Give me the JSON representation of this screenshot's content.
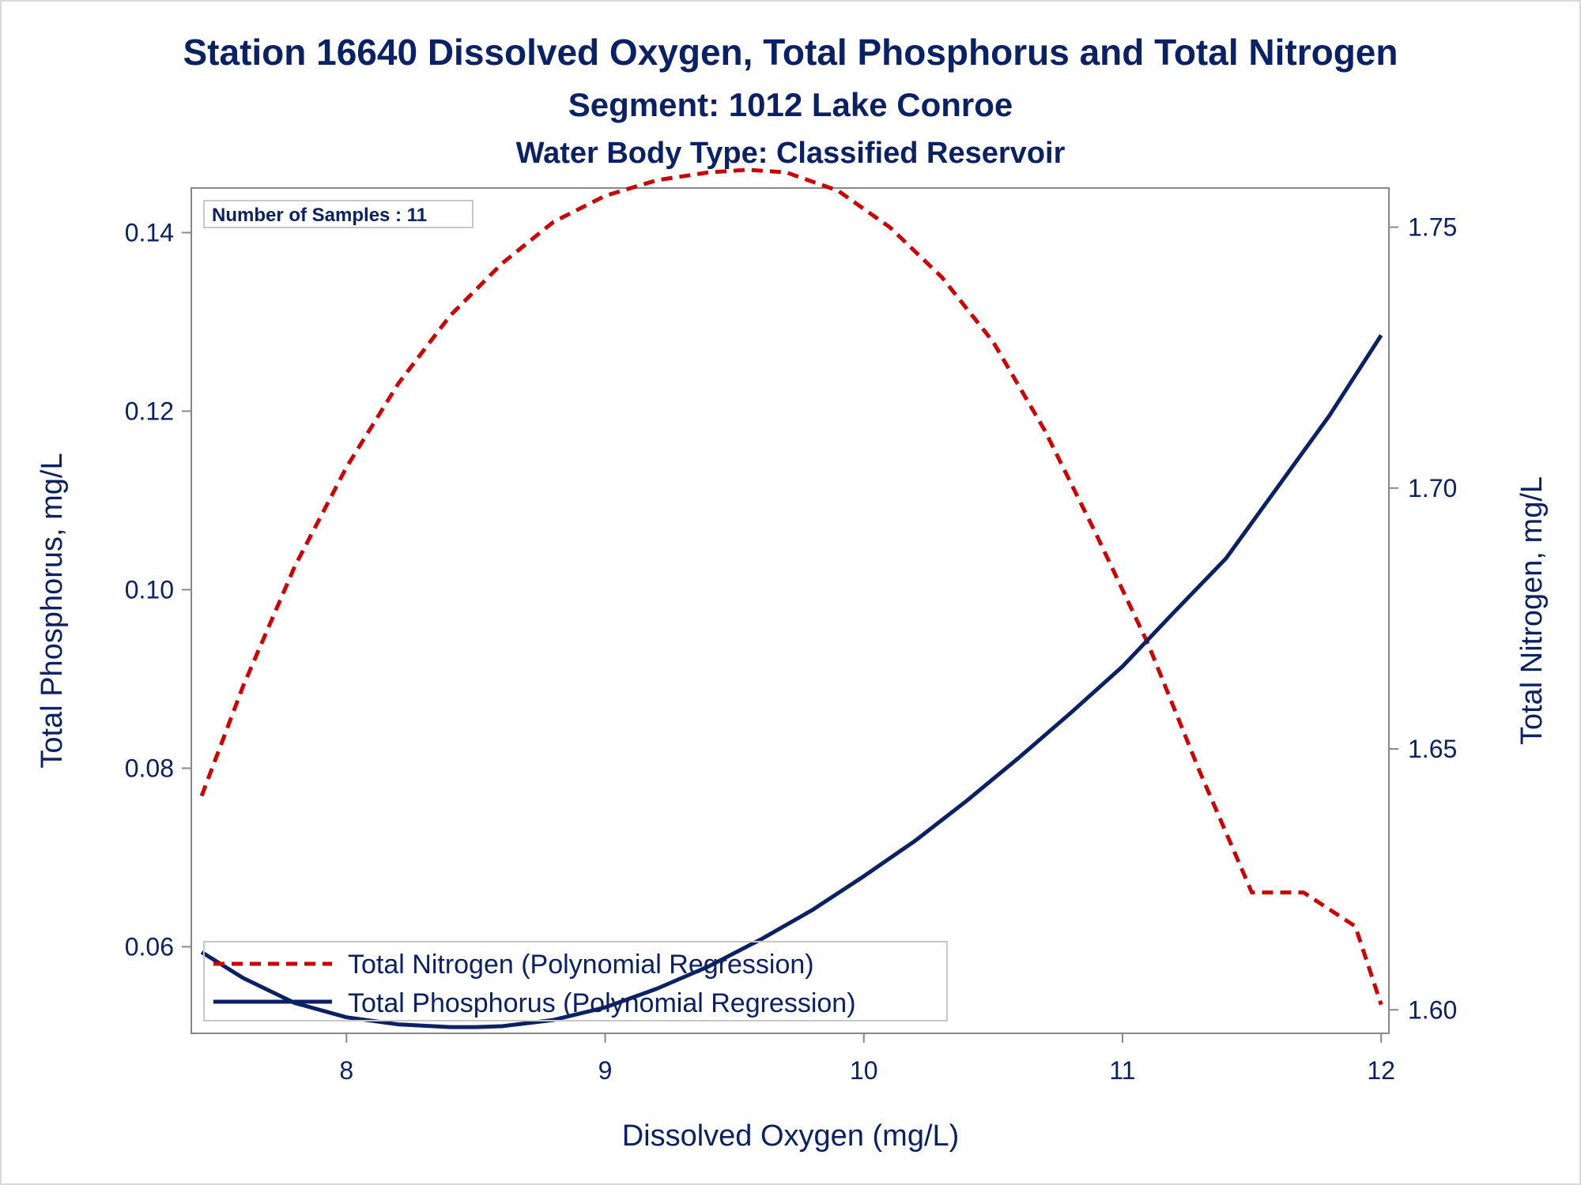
{
  "chart_data": {
    "type": "line",
    "title": "Station 16640  Dissolved Oxygen, Total Phosphorus and Total Nitrogen",
    "subtitle": "Segment: 1012  Lake Conroe",
    "subtitle2": "Water Body Type: Classified Reservoir",
    "annotation": "Number of Samples : 11",
    "xlabel": "Dissolved Oxygen (mg/L)",
    "ylabel_left": "Total Phosphorus, mg/L",
    "ylabel_right": "Total Nitrogen, mg/L",
    "xlim": [
      7.4,
      12.03
    ],
    "ylim_left": [
      0.0503,
      0.145
    ],
    "ylim_right": [
      1.5955,
      1.7575
    ],
    "x_ticks": [
      8,
      9,
      10,
      11,
      12
    ],
    "x_tick_labels": [
      "8",
      "9",
      "10",
      "11",
      "12"
    ],
    "y_left_ticks": [
      0.06,
      0.08,
      0.1,
      0.12,
      0.14
    ],
    "y_left_tick_labels": [
      "0.06",
      "0.08",
      "0.10",
      "0.12",
      "0.14"
    ],
    "y_right_ticks": [
      1.6,
      1.65,
      1.7,
      1.75
    ],
    "y_right_tick_labels": [
      "1.60",
      "1.65",
      "1.70",
      "1.75"
    ],
    "grid": false,
    "legend_position": "bottom-left",
    "series": [
      {
        "name": "Total Nitrogen (Polynomial Regression)",
        "axis": "right",
        "style": "dashed",
        "color": "#cc0000",
        "x": [
          7.44,
          7.6,
          7.8,
          8.0,
          8.2,
          8.4,
          8.6,
          8.8,
          9.0,
          9.2,
          9.4,
          9.55,
          9.7,
          9.9,
          10.1,
          10.3,
          10.5,
          10.7,
          10.9,
          11.1,
          11.3,
          11.5,
          11.7,
          11.9,
          12.0
        ],
        "values": [
          1.641,
          1.662,
          1.685,
          1.704,
          1.72,
          1.733,
          1.743,
          1.751,
          1.756,
          1.759,
          1.7605,
          1.761,
          1.7605,
          1.757,
          1.75,
          1.7405,
          1.728,
          1.711,
          1.691,
          1.67,
          1.6455,
          1.6225,
          1.6225,
          1.616,
          1.601
        ]
      },
      {
        "name": "Total Phosphorus (Polynomial Regression)",
        "axis": "left",
        "style": "solid",
        "color": "#0b2166",
        "x": [
          7.44,
          7.6,
          7.8,
          8.0,
          8.2,
          8.4,
          8.5,
          8.6,
          8.8,
          9.0,
          9.2,
          9.4,
          9.6,
          9.8,
          10.0,
          10.2,
          10.4,
          10.6,
          10.8,
          11.0,
          11.2,
          11.4,
          11.6,
          11.8,
          12.0
        ],
        "values": [
          0.0594,
          0.0565,
          0.0537,
          0.0521,
          0.0513,
          0.051,
          0.051,
          0.0511,
          0.0518,
          0.0532,
          0.0553,
          0.0578,
          0.0608,
          0.0641,
          0.0679,
          0.0719,
          0.0764,
          0.0812,
          0.0862,
          0.0914,
          0.0975,
          0.1035,
          0.1115,
          0.1195,
          0.1285
        ]
      }
    ]
  }
}
